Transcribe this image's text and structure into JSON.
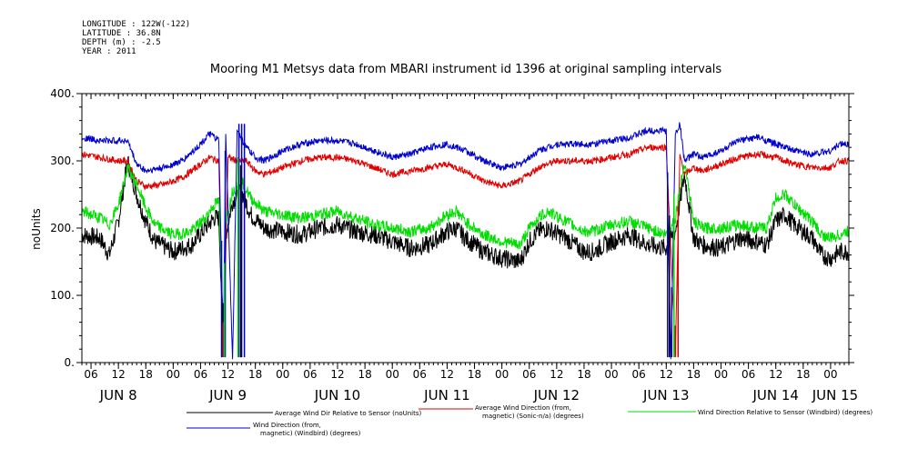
{
  "header": {
    "longitude": "LONGITUDE : 122W(-122)",
    "latitude": "LATITUDE : 36.8N",
    "depth": "DEPTH (m) : -2.5",
    "year": "YEAR : 2011"
  },
  "chart_data": {
    "type": "line",
    "title": "Mooring M1 Metsys data from MBARI instrument id 1396 at original sampling intervals",
    "ylabel": "noUnits",
    "xlabel": "",
    "ylim": [
      0,
      400
    ],
    "yticks": [
      0,
      100,
      200,
      300,
      400
    ],
    "ytick_labels": [
      "0.",
      "100.",
      "200.",
      "300.",
      "400."
    ],
    "xlim_hours": [
      0,
      168
    ],
    "xticks": [
      {
        "hour": 2,
        "label": "06"
      },
      {
        "hour": 8,
        "label": "12"
      },
      {
        "hour": 14,
        "label": "18"
      },
      {
        "hour": 20,
        "label": "00"
      },
      {
        "hour": 26,
        "label": "06"
      },
      {
        "hour": 32,
        "label": "12"
      },
      {
        "hour": 38,
        "label": "18"
      },
      {
        "hour": 44,
        "label": "00"
      },
      {
        "hour": 50,
        "label": "06"
      },
      {
        "hour": 56,
        "label": "12"
      },
      {
        "hour": 62,
        "label": "18"
      },
      {
        "hour": 68,
        "label": "00"
      },
      {
        "hour": 74,
        "label": "06"
      },
      {
        "hour": 80,
        "label": "12"
      },
      {
        "hour": 86,
        "label": "18"
      },
      {
        "hour": 92,
        "label": "00"
      },
      {
        "hour": 98,
        "label": "06"
      },
      {
        "hour": 104,
        "label": "12"
      },
      {
        "hour": 110,
        "label": "18"
      },
      {
        "hour": 116,
        "label": "00"
      },
      {
        "hour": 122,
        "label": "06"
      },
      {
        "hour": 128,
        "label": "12"
      },
      {
        "hour": 134,
        "label": "18"
      },
      {
        "hour": 140,
        "label": "00"
      },
      {
        "hour": 146,
        "label": "06"
      },
      {
        "hour": 152,
        "label": "12"
      },
      {
        "hour": 158,
        "label": "18"
      },
      {
        "hour": 164,
        "label": "00"
      }
    ],
    "day_labels": [
      {
        "hour": 8,
        "label": "JUN  8"
      },
      {
        "hour": 32,
        "label": "JUN  9"
      },
      {
        "hour": 56,
        "label": "JUN 10"
      },
      {
        "hour": 80,
        "label": "JUN 11"
      },
      {
        "hour": 104,
        "label": "JUN 12"
      },
      {
        "hour": 128,
        "label": "JUN 13"
      },
      {
        "hour": 152,
        "label": "JUN 14"
      },
      {
        "hour": 165,
        "label": "JUN 15"
      }
    ],
    "series": [
      {
        "name": "Average Wind Dir Relative to Sensor (noUnits)",
        "color": "#000000",
        "points": [
          [
            0,
            190
          ],
          [
            4,
            185
          ],
          [
            6,
            160
          ],
          [
            8,
            210
          ],
          [
            10,
            300
          ],
          [
            12,
            250
          ],
          [
            14,
            210
          ],
          [
            16,
            180
          ],
          [
            20,
            165
          ],
          [
            24,
            175
          ],
          [
            27,
            200
          ],
          [
            29,
            215
          ],
          [
            30,
            215
          ],
          [
            31,
            30
          ],
          [
            31.5,
            190
          ],
          [
            33,
            240
          ],
          [
            35,
            255
          ],
          [
            37,
            220
          ],
          [
            40,
            200
          ],
          [
            44,
            195
          ],
          [
            48,
            190
          ],
          [
            52,
            200
          ],
          [
            56,
            205
          ],
          [
            60,
            195
          ],
          [
            64,
            190
          ],
          [
            68,
            180
          ],
          [
            72,
            170
          ],
          [
            76,
            175
          ],
          [
            80,
            195
          ],
          [
            82,
            200
          ],
          [
            84,
            185
          ],
          [
            88,
            165
          ],
          [
            92,
            155
          ],
          [
            96,
            150
          ],
          [
            98,
            180
          ],
          [
            100,
            195
          ],
          [
            102,
            200
          ],
          [
            106,
            185
          ],
          [
            110,
            165
          ],
          [
            112,
            165
          ],
          [
            116,
            180
          ],
          [
            120,
            190
          ],
          [
            124,
            175
          ],
          [
            128,
            170
          ],
          [
            130,
            195
          ],
          [
            132,
            280
          ],
          [
            134,
            185
          ],
          [
            136,
            175
          ],
          [
            140,
            170
          ],
          [
            144,
            185
          ],
          [
            148,
            180
          ],
          [
            150,
            175
          ],
          [
            152,
            210
          ],
          [
            154,
            220
          ],
          [
            156,
            205
          ],
          [
            160,
            185
          ],
          [
            162,
            160
          ],
          [
            164,
            155
          ],
          [
            166,
            165
          ],
          [
            168,
            165
          ]
        ]
      },
      {
        "name": "Average Wind Direction (from, magnetic) (Sonic-n/a) (degrees)",
        "color": "#e00000",
        "points": [
          [
            0,
            310
          ],
          [
            4,
            305
          ],
          [
            8,
            300
          ],
          [
            10,
            300
          ],
          [
            12,
            270
          ],
          [
            14,
            262
          ],
          [
            18,
            265
          ],
          [
            22,
            275
          ],
          [
            26,
            295
          ],
          [
            28,
            305
          ],
          [
            30,
            300
          ],
          [
            31,
            20
          ],
          [
            32,
            305
          ],
          [
            34,
            300
          ],
          [
            36,
            300
          ],
          [
            38,
            285
          ],
          [
            40,
            280
          ],
          [
            44,
            290
          ],
          [
            48,
            300
          ],
          [
            52,
            305
          ],
          [
            56,
            305
          ],
          [
            60,
            300
          ],
          [
            64,
            290
          ],
          [
            68,
            280
          ],
          [
            72,
            285
          ],
          [
            76,
            290
          ],
          [
            80,
            295
          ],
          [
            84,
            285
          ],
          [
            88,
            270
          ],
          [
            92,
            262
          ],
          [
            96,
            270
          ],
          [
            100,
            290
          ],
          [
            104,
            300
          ],
          [
            108,
            300
          ],
          [
            112,
            300
          ],
          [
            116,
            305
          ],
          [
            120,
            310
          ],
          [
            124,
            320
          ],
          [
            128,
            320
          ],
          [
            130,
            15
          ],
          [
            131,
            310
          ],
          [
            132,
            280
          ],
          [
            134,
            290
          ],
          [
            136,
            285
          ],
          [
            140,
            295
          ],
          [
            144,
            305
          ],
          [
            148,
            310
          ],
          [
            152,
            305
          ],
          [
            156,
            295
          ],
          [
            160,
            290
          ],
          [
            164,
            290
          ],
          [
            166,
            300
          ],
          [
            168,
            300
          ]
        ]
      },
      {
        "name": "Wind Direction Relative to Sensor (Windbird) (degrees)",
        "color": "#00dd00",
        "points": [
          [
            0,
            225
          ],
          [
            4,
            215
          ],
          [
            6,
            205
          ],
          [
            8,
            235
          ],
          [
            10,
            290
          ],
          [
            12,
            265
          ],
          [
            14,
            230
          ],
          [
            16,
            205
          ],
          [
            20,
            190
          ],
          [
            24,
            195
          ],
          [
            27,
            215
          ],
          [
            29,
            235
          ],
          [
            30,
            240
          ],
          [
            31,
            40
          ],
          [
            31.5,
            210
          ],
          [
            33,
            255
          ],
          [
            35,
            270
          ],
          [
            37,
            245
          ],
          [
            40,
            225
          ],
          [
            44,
            220
          ],
          [
            48,
            215
          ],
          [
            52,
            220
          ],
          [
            56,
            225
          ],
          [
            60,
            215
          ],
          [
            64,
            205
          ],
          [
            68,
            200
          ],
          [
            72,
            195
          ],
          [
            76,
            200
          ],
          [
            80,
            220
          ],
          [
            82,
            225
          ],
          [
            84,
            210
          ],
          [
            88,
            190
          ],
          [
            92,
            180
          ],
          [
            96,
            175
          ],
          [
            98,
            200
          ],
          [
            100,
            215
          ],
          [
            102,
            225
          ],
          [
            106,
            210
          ],
          [
            110,
            195
          ],
          [
            112,
            195
          ],
          [
            116,
            205
          ],
          [
            120,
            210
          ],
          [
            124,
            200
          ],
          [
            128,
            190
          ],
          [
            130,
            215
          ],
          [
            132,
            300
          ],
          [
            134,
            210
          ],
          [
            136,
            200
          ],
          [
            140,
            200
          ],
          [
            144,
            205
          ],
          [
            148,
            200
          ],
          [
            150,
            200
          ],
          [
            152,
            245
          ],
          [
            154,
            250
          ],
          [
            156,
            235
          ],
          [
            160,
            210
          ],
          [
            162,
            190
          ],
          [
            164,
            185
          ],
          [
            166,
            190
          ],
          [
            168,
            195
          ]
        ]
      },
      {
        "name": "Wind Direction (from, magnetic) (Windbird) (degrees)",
        "color": "#0000cc",
        "points": [
          [
            0,
            335
          ],
          [
            4,
            330
          ],
          [
            8,
            330
          ],
          [
            10,
            330
          ],
          [
            12,
            295
          ],
          [
            14,
            285
          ],
          [
            18,
            290
          ],
          [
            22,
            300
          ],
          [
            26,
            325
          ],
          [
            28,
            340
          ],
          [
            30,
            330
          ],
          [
            31,
            15
          ],
          [
            31.5,
            340
          ],
          [
            33,
            5
          ],
          [
            34,
            345
          ],
          [
            36,
            320
          ],
          [
            38,
            305
          ],
          [
            40,
            300
          ],
          [
            44,
            315
          ],
          [
            48,
            325
          ],
          [
            52,
            330
          ],
          [
            56,
            330
          ],
          [
            60,
            325
          ],
          [
            64,
            315
          ],
          [
            68,
            305
          ],
          [
            72,
            310
          ],
          [
            76,
            320
          ],
          [
            80,
            325
          ],
          [
            84,
            315
          ],
          [
            88,
            300
          ],
          [
            92,
            290
          ],
          [
            96,
            295
          ],
          [
            100,
            315
          ],
          [
            104,
            325
          ],
          [
            108,
            325
          ],
          [
            112,
            325
          ],
          [
            116,
            330
          ],
          [
            120,
            335
          ],
          [
            124,
            345
          ],
          [
            128,
            345
          ],
          [
            129,
            5
          ],
          [
            130,
            340
          ],
          [
            131,
            355
          ],
          [
            132,
            300
          ],
          [
            134,
            310
          ],
          [
            136,
            305
          ],
          [
            140,
            315
          ],
          [
            144,
            330
          ],
          [
            148,
            335
          ],
          [
            152,
            325
          ],
          [
            156,
            315
          ],
          [
            160,
            310
          ],
          [
            164,
            315
          ],
          [
            166,
            325
          ],
          [
            168,
            325
          ]
        ]
      }
    ],
    "spikes": [
      {
        "series": 3,
        "hours": [
          30.6,
          31.4,
          34.4,
          35.0,
          35.6,
          128.3,
          129.2
        ]
      },
      {
        "series": 0,
        "hours": [
          30.9,
          34.8,
          128.7
        ]
      },
      {
        "series": 1,
        "hours": [
          31.0,
          130.0,
          130.6
        ]
      },
      {
        "series": 2,
        "hours": [
          31.2,
          34.2,
          129.7
        ]
      }
    ],
    "legend": [
      {
        "series": 0,
        "lines": [
          "Average Wind Dir Relative to Sensor (noUnits)"
        ]
      },
      {
        "series": 1,
        "lines": [
          "Average Wind Direction (from,",
          "magnetic) (Sonic-n/a) (degrees)"
        ]
      },
      {
        "series": 2,
        "lines": [
          "Wind Direction Relative to Sensor (Windbird) (degrees)"
        ]
      },
      {
        "series": 3,
        "lines": [
          "Wind Direction (from,",
          "magnetic) (Windbird) (degrees)"
        ]
      }
    ],
    "legend_position": "bottom"
  }
}
